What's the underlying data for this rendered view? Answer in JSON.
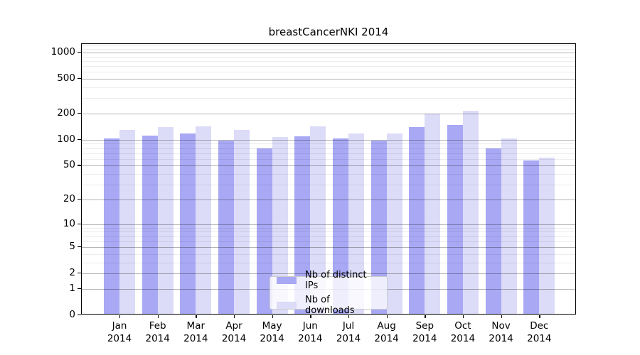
{
  "figure": {
    "background": "#ffffff"
  },
  "chart_data": {
    "type": "bar",
    "title": "breastCancerNKI 2014",
    "xlabel": "",
    "ylabel": "",
    "year": "2014",
    "categories": [
      "Jan",
      "Feb",
      "Mar",
      "Apr",
      "May",
      "Jun",
      "Jul",
      "Aug",
      "Sep",
      "Oct",
      "Nov",
      "Dec"
    ],
    "series": [
      {
        "name": "Nb of distinct IPs",
        "color": "#a8a8f4",
        "values": [
          100,
          108,
          114,
          94,
          77,
          106,
          99,
          94,
          136,
          143,
          76,
          55
        ]
      },
      {
        "name": "Nb of downloads",
        "color": "#dcdcf8",
        "values": [
          126,
          136,
          138,
          125,
          104,
          138,
          114,
          114,
          193,
          207,
          100,
          60
        ]
      }
    ],
    "yscale": "log1p",
    "y_major_ticks": [
      0,
      1,
      2,
      5,
      10,
      20,
      50,
      100,
      200,
      500,
      1000
    ],
    "y_minor_ticks": [
      3,
      4,
      6,
      7,
      8,
      9,
      30,
      40,
      60,
      70,
      80,
      90,
      300,
      400,
      600,
      700,
      800,
      900,
      1100,
      1200
    ],
    "y_max": 1252,
    "grid": true,
    "legend_position": "inside-bottom-center",
    "colors": {
      "major_grid": "#b5b5b5",
      "minor_grid": "#ececec",
      "axis": "#000000"
    }
  }
}
